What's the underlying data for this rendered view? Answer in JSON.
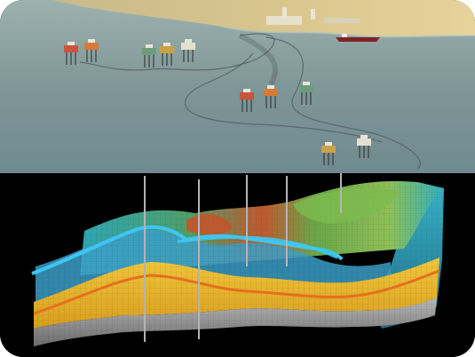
{
  "image": {
    "subject": "offshore-oil-field-and-reservoir-model",
    "upper_panel": "offshore-platforms-and-pipelines",
    "lower_panel": "3d-geological-reservoir-cross-section"
  },
  "colors": {
    "sea": "#7f9698",
    "sea_light": "#a9bcb8",
    "desert": "#d8c489",
    "background": "#000000",
    "reservoir_yellow": "#e8b62a",
    "reservoir_orange": "#e4701d",
    "horizon_cyan": "#34b6e3",
    "surface_green": "#5f9d3c",
    "base_grey": "#8c8c8c",
    "well": "#b4b4b4"
  },
  "platforms": [
    "platform-a",
    "platform-b",
    "platform-c",
    "platform-d",
    "platform-e",
    "platform-f",
    "platform-g",
    "platform-h",
    "platform-i",
    "platform-j"
  ],
  "wells": [
    "well-1",
    "well-2",
    "well-3",
    "well-4",
    "well-5"
  ],
  "ship": "tanker-ship"
}
